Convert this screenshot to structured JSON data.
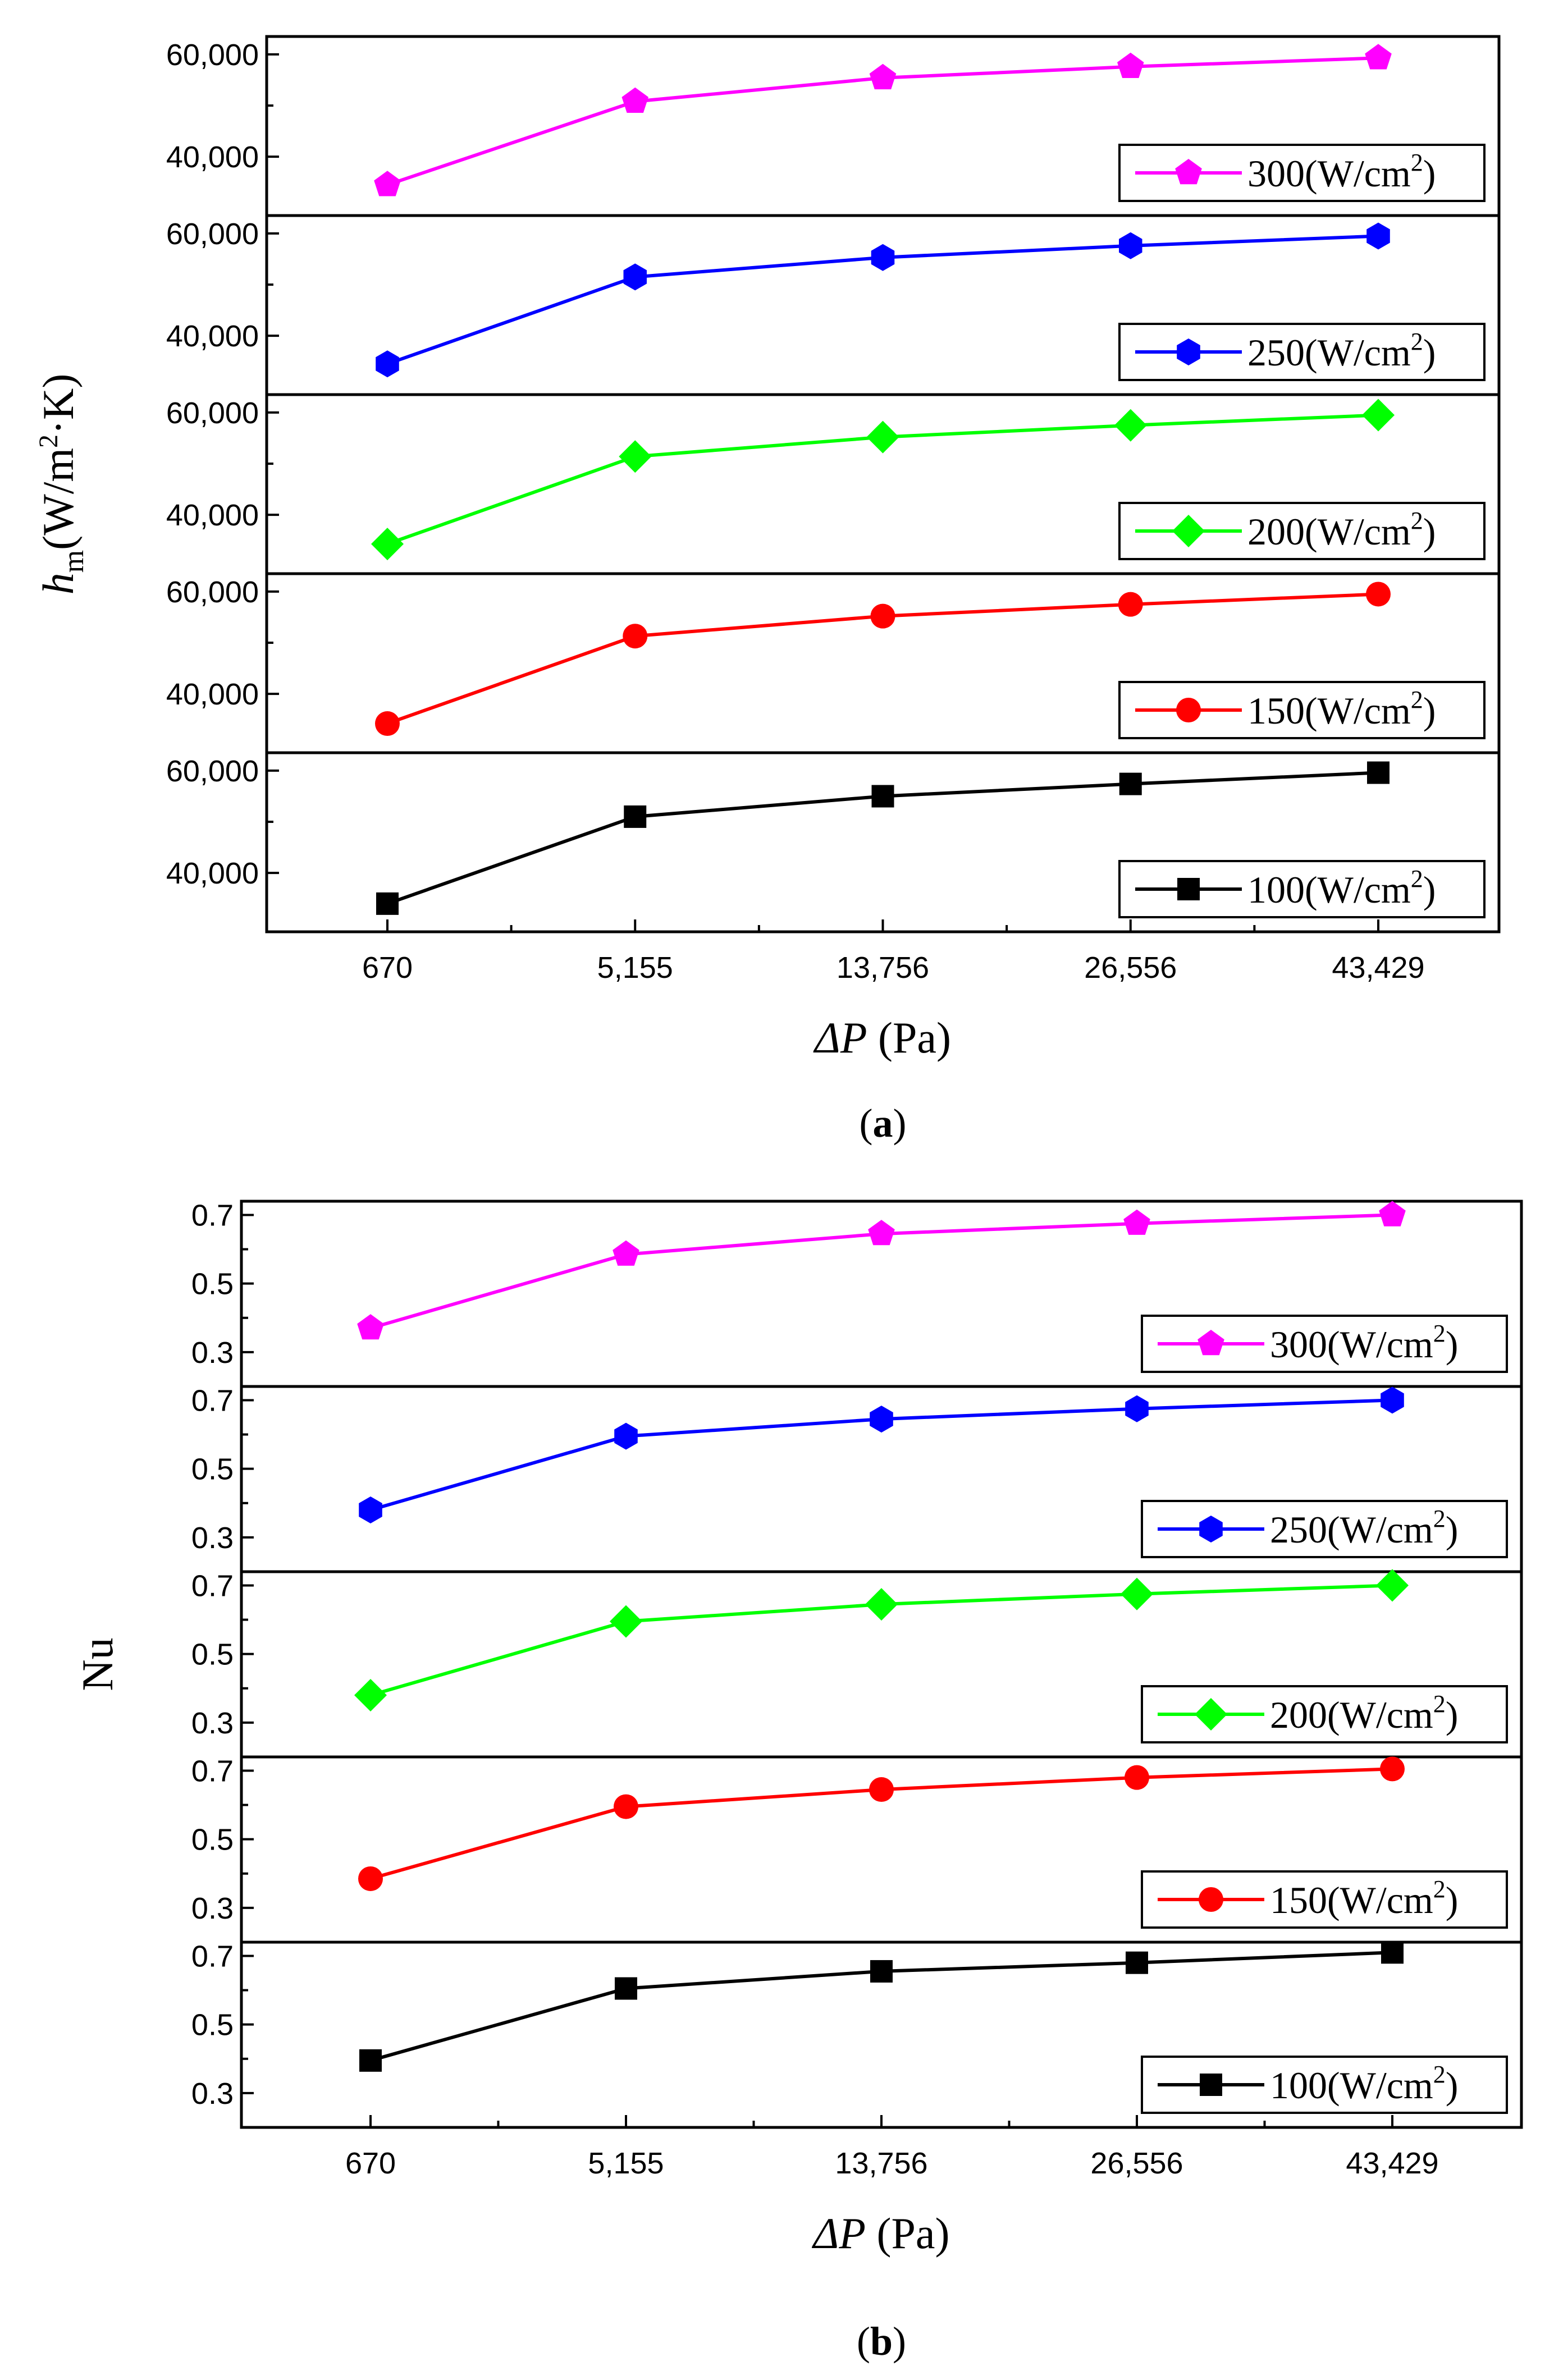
{
  "figure": {
    "charts": [
      {
        "id": "a",
        "caption_prefix": "(",
        "caption_label": "a",
        "caption_suffix": ")"
      },
      {
        "id": "b",
        "caption_prefix": "(",
        "caption_label": "b",
        "caption_suffix": ")"
      }
    ]
  },
  "chart_data": [
    {
      "type": "line",
      "layout": "stacked-panels",
      "title": "",
      "ylabel_main": "h",
      "ylabel_sub": "m",
      "ylabel_rest": "(W/m",
      "ylabel_sup": "2",
      "ylabel_end": "·K)",
      "xlabel_main": "ΔP",
      "xlabel_unit": " (Pa)",
      "categories": [
        "670",
        "5,155",
        "13,756",
        "26,556",
        "43,429"
      ],
      "panel_ylim": [
        28500,
        63500
      ],
      "panel_yticks": [
        40000,
        60000
      ],
      "panel_ytick_labels": [
        "40,000",
        "60,000"
      ],
      "legend_position": "bottom-right",
      "series": [
        {
          "name": "300",
          "legend_prefix": "300(W/cm",
          "legend_sup": "2",
          "legend_suffix": ")",
          "color": "#ff00ff",
          "marker": "pentagon",
          "values": [
            34500,
            50800,
            55400,
            57600,
            59300
          ]
        },
        {
          "name": "250",
          "legend_prefix": "250(W/cm",
          "legend_sup": "2",
          "legend_suffix": ")",
          "color": "#0000ff",
          "marker": "hexagon",
          "values": [
            34500,
            51500,
            55300,
            57600,
            59500
          ]
        },
        {
          "name": "200",
          "legend_prefix": "200(W/cm",
          "legend_sup": "2",
          "legend_suffix": ")",
          "color": "#00ff00",
          "marker": "diamond",
          "values": [
            34300,
            51400,
            55200,
            57500,
            59500
          ]
        },
        {
          "name": "150",
          "legend_prefix": "150(W/cm",
          "legend_sup": "2",
          "legend_suffix": ")",
          "color": "#ff0000",
          "marker": "circle",
          "values": [
            34200,
            51300,
            55200,
            57500,
            59500
          ]
        },
        {
          "name": "100",
          "legend_prefix": "100(W/cm",
          "legend_sup": "2",
          "legend_suffix": ")",
          "color": "#000000",
          "marker": "square",
          "values": [
            34000,
            51000,
            55000,
            57400,
            59600
          ]
        }
      ]
    },
    {
      "type": "line",
      "layout": "stacked-panels",
      "title": "",
      "ylabel_main": "Nu",
      "xlabel_main": "ΔP",
      "xlabel_unit": " (Pa)",
      "categories": [
        "670",
        "5,155",
        "13,756",
        "26,556",
        "43,429"
      ],
      "panel_ylim": [
        0.2,
        0.74
      ],
      "panel_yticks": [
        0.3,
        0.5,
        0.7
      ],
      "panel_ytick_labels": [
        "0.3",
        "0.5",
        "0.7"
      ],
      "legend_position": "bottom-right",
      "series": [
        {
          "name": "300",
          "legend_prefix": "300(W/cm",
          "legend_sup": "2",
          "legend_suffix": ")",
          "color": "#ff00ff",
          "marker": "pentagon",
          "values": [
            0.37,
            0.585,
            0.645,
            0.675,
            0.7
          ]
        },
        {
          "name": "250",
          "legend_prefix": "250(W/cm",
          "legend_sup": "2",
          "legend_suffix": ")",
          "color": "#0000ff",
          "marker": "hexagon",
          "values": [
            0.38,
            0.595,
            0.645,
            0.675,
            0.7
          ]
        },
        {
          "name": "200",
          "legend_prefix": "200(W/cm",
          "legend_sup": "2",
          "legend_suffix": ")",
          "color": "#00ff00",
          "marker": "diamond",
          "values": [
            0.38,
            0.595,
            0.645,
            0.675,
            0.7
          ]
        },
        {
          "name": "150",
          "legend_prefix": "150(W/cm",
          "legend_sup": "2",
          "legend_suffix": ")",
          "color": "#ff0000",
          "marker": "circle",
          "values": [
            0.385,
            0.595,
            0.645,
            0.68,
            0.705
          ]
        },
        {
          "name": "100",
          "legend_prefix": "100(W/cm",
          "legend_sup": "2",
          "legend_suffix": ")",
          "color": "#000000",
          "marker": "square",
          "values": [
            0.395,
            0.605,
            0.655,
            0.68,
            0.71
          ]
        }
      ]
    }
  ]
}
